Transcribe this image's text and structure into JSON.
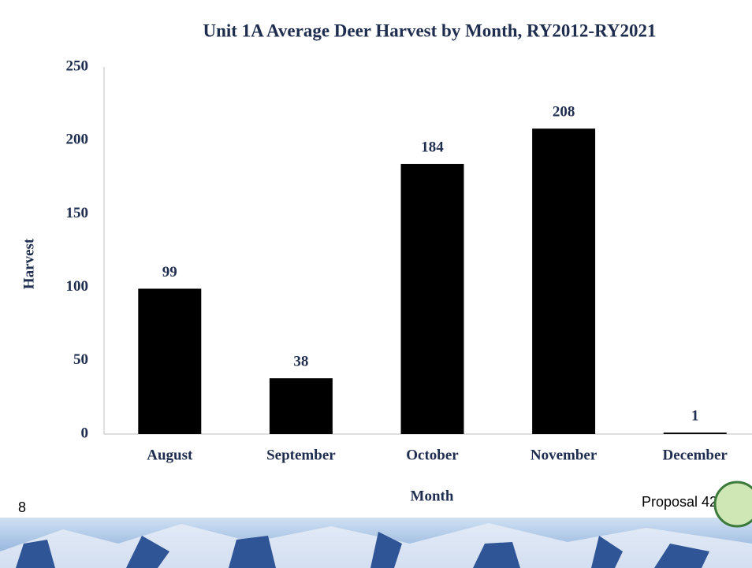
{
  "chart_data": {
    "type": "bar",
    "title": "Unit 1A Average Deer Harvest by Month, RY2012-RY2021",
    "categories": [
      "August",
      "September",
      "October",
      "November",
      "December"
    ],
    "values": [
      99,
      38,
      184,
      208,
      1
    ],
    "color": "#000000",
    "ylim": [
      0,
      250
    ],
    "yticks": [
      0,
      50,
      100,
      150,
      200,
      250
    ],
    "x_label": "Month",
    "y_label": "Harvest",
    "grid": false,
    "data_labels": true
  },
  "slide_number": "8",
  "footer": "Proposal 42"
}
